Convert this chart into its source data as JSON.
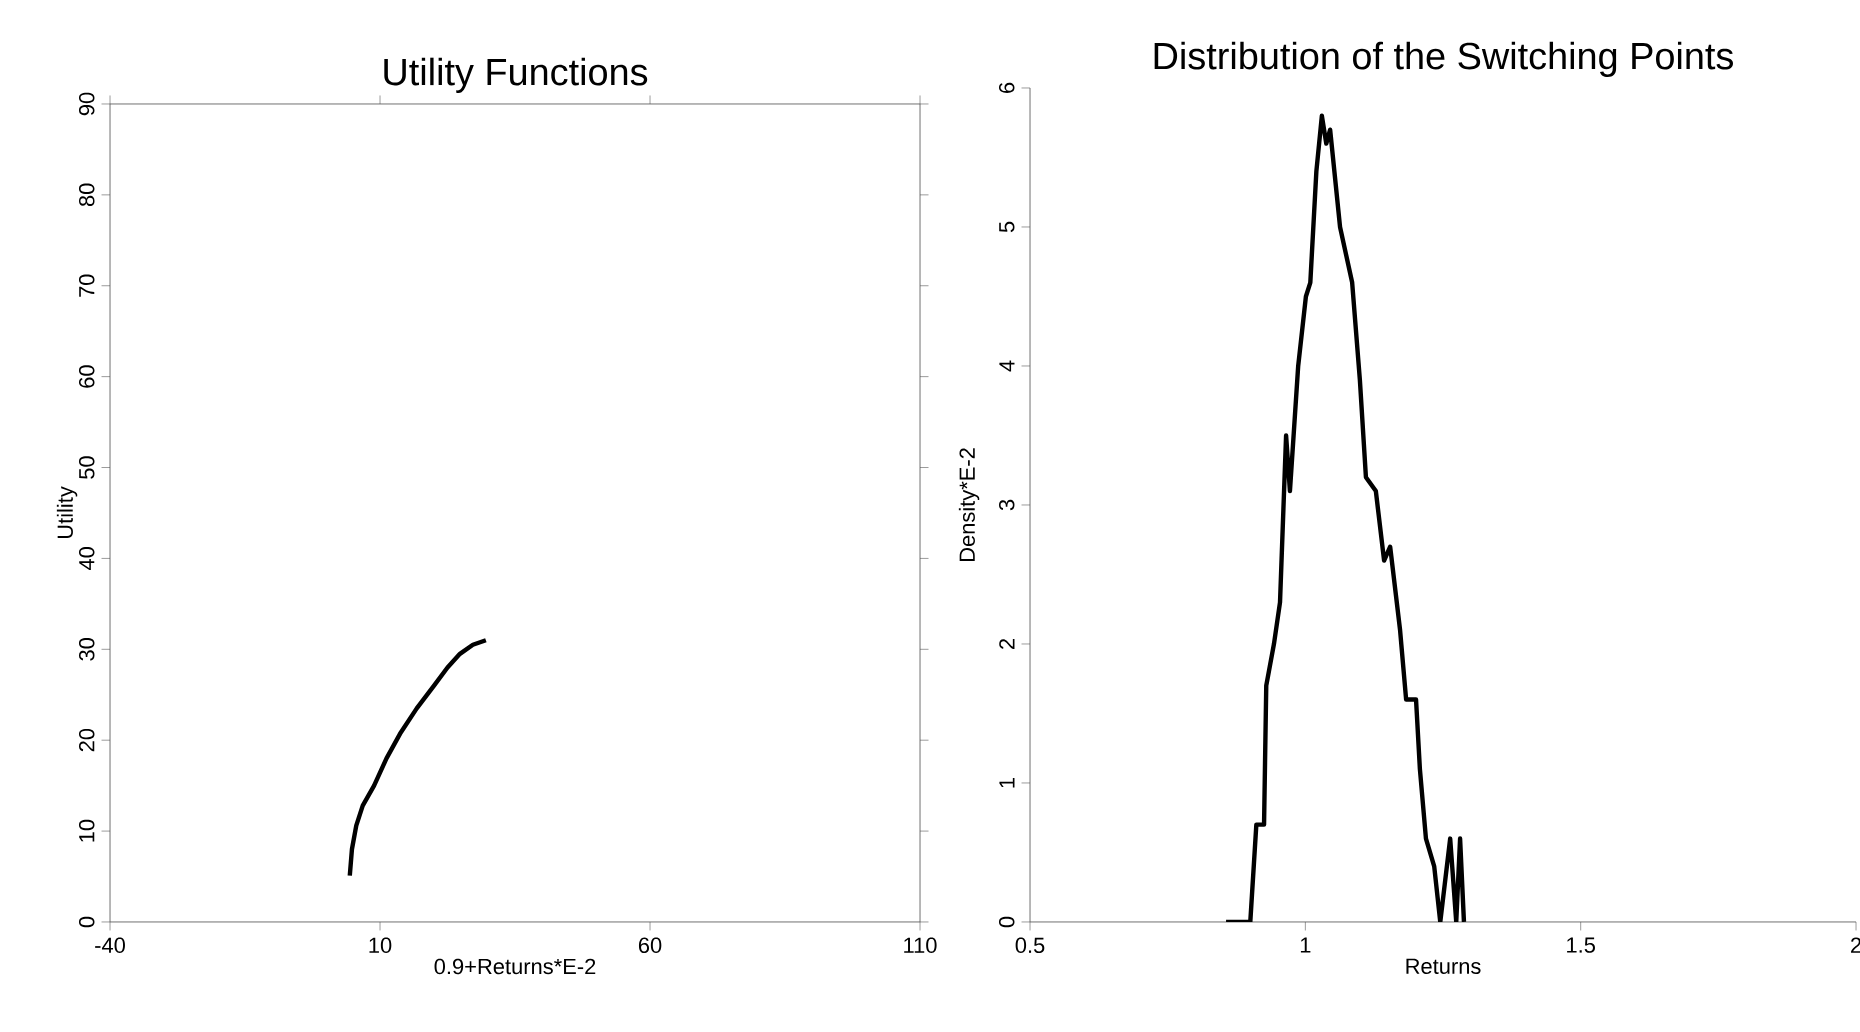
{
  "chart_data": [
    {
      "type": "line",
      "title": "Utility Functions",
      "xlabel": "0.9+Returns*E-2",
      "ylabel": "Utility",
      "xlim": [
        -40,
        110
      ],
      "xticks": [
        -40,
        10,
        60,
        110
      ],
      "ylim": [
        0,
        90
      ],
      "yticks": [
        0,
        10,
        20,
        30,
        40,
        50,
        60,
        70,
        80,
        90
      ],
      "series": [
        {
          "color": "#000000",
          "x": [
            4.4,
            4.8,
            5.6,
            6.8,
            8.9,
            11.2,
            13.7,
            16.8,
            20,
            22.5,
            24.8,
            27.2,
            29.6
          ],
          "values": [
            5.1,
            8,
            10.6,
            12.8,
            15,
            18,
            20.7,
            23.5,
            26,
            28,
            29.5,
            30.5,
            31
          ]
        }
      ],
      "marker": "none",
      "line_style": "solid"
    },
    {
      "type": "line",
      "title": "Distribution of the Switching Points",
      "xlabel": "Returns",
      "ylabel": "Density*E-2",
      "xlim": [
        0.5,
        2
      ],
      "xticks": [
        0.5,
        1,
        1.5,
        2
      ],
      "ylim": [
        0,
        6
      ],
      "yticks": [
        0,
        1,
        2,
        3,
        4,
        5,
        6
      ],
      "series": [
        {
          "color": "#000000",
          "x": [
            0.856,
            0.9,
            0.911,
            0.925,
            0.929,
            0.943,
            0.954,
            0.965,
            0.972,
            0.987,
            1.001,
            1.009,
            1.02,
            1.03,
            1.038,
            1.045,
            1.063,
            1.085,
            1.099,
            1.11,
            1.128,
            1.143,
            1.154,
            1.172,
            1.183,
            1.201,
            1.208,
            1.219,
            1.234,
            1.245,
            1.263,
            1.274,
            1.281,
            1.288
          ],
          "values": [
            0,
            0,
            0.7,
            0.7,
            1.7,
            2,
            2.3,
            3.5,
            3.1,
            4,
            4.5,
            4.6,
            5.4,
            5.8,
            5.6,
            5.7,
            5,
            4.6,
            3.9,
            3.2,
            3.1,
            2.6,
            2.7,
            2.1,
            1.6,
            1.6,
            1.1,
            0.6,
            0.4,
            0,
            0.6,
            0,
            0.6,
            0
          ]
        }
      ],
      "marker": "none",
      "line_style": "solid"
    }
  ]
}
